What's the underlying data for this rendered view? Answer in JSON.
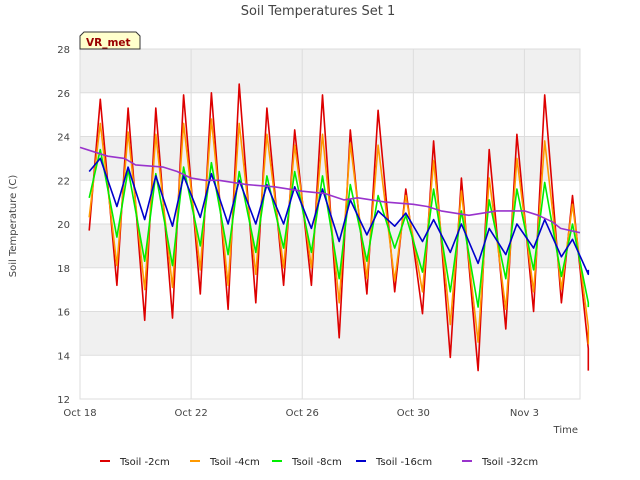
{
  "chart_data": {
    "type": "line",
    "title": "Soil Temperatures Set 1",
    "xlabel": "Time",
    "ylabel": "Soil Temperature (C)",
    "ylim": [
      12,
      28
    ],
    "xlim": [
      "2023-10-18",
      "2023-11-05"
    ],
    "x_ticks": [
      {
        "label": "Oct 18",
        "day": 0
      },
      {
        "label": "Oct 22",
        "day": 4
      },
      {
        "label": "Oct 26",
        "day": 8
      },
      {
        "label": "Oct 30",
        "day": 12
      },
      {
        "label": "Nov 3",
        "day": 16
      }
    ],
    "y_ticks": [
      12,
      14,
      16,
      18,
      20,
      22,
      24,
      26,
      28
    ],
    "grid": true,
    "station_label": "VR_met",
    "legend_position": "bottom",
    "series": [
      {
        "name": "Tsoil -2cm",
        "color": "#dd0000",
        "peaks": [
          25.7,
          25.3,
          25.3,
          25.9,
          26.0,
          26.4,
          25.3,
          24.3,
          25.9,
          24.3,
          25.2,
          21.6,
          23.8,
          22.1,
          23.4,
          24.1,
          25.9,
          21.3,
          18.5
        ],
        "troughs": [
          19.7,
          17.2,
          15.6,
          15.7,
          16.8,
          16.1,
          16.4,
          17.2,
          17.2,
          14.8,
          16.8,
          16.9,
          15.9,
          13.9,
          13.3,
          15.2,
          16.0,
          16.4,
          14.3,
          13.3
        ]
      },
      {
        "name": "Tsoil -4cm",
        "color": "#ff9900",
        "peaks": [
          24.6,
          24.2,
          24.1,
          24.6,
          24.8,
          24.6,
          24.1,
          23.6,
          24.1,
          23.7,
          23.6,
          21.3,
          22.9,
          21.5,
          22.1,
          23.0,
          23.8,
          20.9,
          18.0
        ],
        "troughs": [
          20.3,
          18.1,
          17.0,
          17.1,
          17.9,
          17.2,
          17.7,
          18.0,
          18.0,
          16.4,
          17.5,
          17.4,
          16.9,
          15.4,
          14.6,
          16.1,
          16.9,
          17.0,
          15.3,
          14.5
        ]
      },
      {
        "name": "Tsoil -8cm",
        "color": "#00ee00",
        "peaks": [
          23.4,
          22.5,
          22.3,
          22.6,
          22.8,
          22.4,
          22.2,
          22.4,
          22.2,
          21.8,
          21.3,
          20.4,
          21.6,
          20.6,
          21.1,
          21.6,
          21.9,
          20.0,
          18.6
        ],
        "troughs": [
          21.2,
          19.4,
          18.3,
          18.1,
          19.0,
          18.6,
          18.7,
          18.9,
          18.7,
          17.5,
          18.3,
          18.9,
          17.8,
          16.9,
          16.2,
          17.5,
          17.9,
          17.6,
          16.4,
          16.2
        ]
      },
      {
        "name": "Tsoil -16cm",
        "color": "#0000cc",
        "peaks": [
          23.0,
          22.6,
          22.2,
          22.2,
          22.3,
          22.0,
          21.8,
          21.7,
          21.6,
          21.1,
          20.6,
          20.5,
          20.2,
          20.0,
          19.8,
          20.0,
          20.2,
          19.3,
          18.8
        ],
        "troughs": [
          22.4,
          20.8,
          20.2,
          19.9,
          20.3,
          20.0,
          20.0,
          20.0,
          19.8,
          19.2,
          19.5,
          19.9,
          19.2,
          18.7,
          18.2,
          18.6,
          18.9,
          18.5,
          17.7,
          17.9
        ]
      },
      {
        "name": "Tsoil -32cm",
        "color": "#9933cc",
        "points": [
          [
            0.0,
            23.5
          ],
          [
            0.5,
            23.3
          ],
          [
            1.0,
            23.1
          ],
          [
            1.6,
            23.0
          ],
          [
            2.0,
            22.7
          ],
          [
            3.0,
            22.6
          ],
          [
            3.5,
            22.4
          ],
          [
            4.0,
            22.1
          ],
          [
            4.5,
            22.0
          ],
          [
            5.0,
            22.0
          ],
          [
            6.0,
            21.8
          ],
          [
            7.0,
            21.7
          ],
          [
            8.0,
            21.5
          ],
          [
            8.8,
            21.4
          ],
          [
            9.5,
            21.1
          ],
          [
            10.0,
            21.2
          ],
          [
            11.0,
            21.0
          ],
          [
            12.0,
            20.9
          ],
          [
            12.5,
            20.8
          ],
          [
            13.0,
            20.6
          ],
          [
            14.0,
            20.4
          ],
          [
            15.0,
            20.6
          ],
          [
            16.0,
            20.6
          ],
          [
            16.5,
            20.4
          ],
          [
            17.0,
            20.1
          ],
          [
            17.3,
            19.8
          ],
          [
            18.0,
            19.6
          ]
        ]
      }
    ]
  }
}
